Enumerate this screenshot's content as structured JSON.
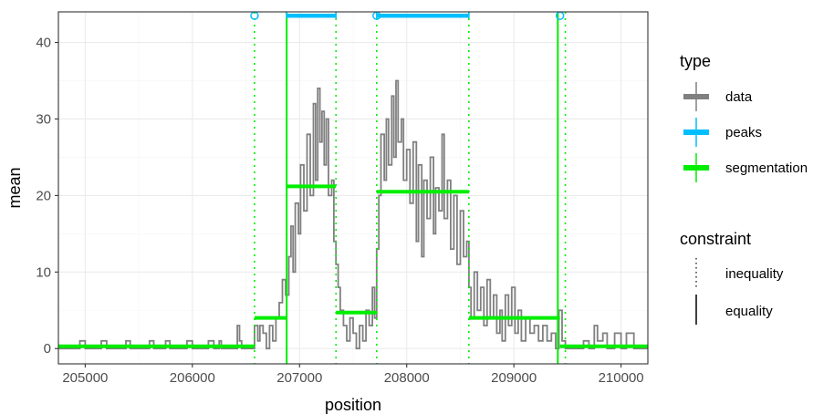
{
  "chart_data": {
    "type": "line",
    "xlabel": "position",
    "ylabel": "mean",
    "xlim": [
      204750,
      210250
    ],
    "ylim": [
      -2,
      44
    ],
    "x_ticks": [
      205000,
      206000,
      207000,
      208000,
      209000,
      210000
    ],
    "x_tick_labels": [
      "205000",
      "206000",
      "207000",
      "208000",
      "209000",
      "210000"
    ],
    "y_ticks": [
      0,
      10,
      20,
      30,
      40
    ],
    "y_tick_labels": [
      "0",
      "10",
      "20",
      "30",
      "40"
    ],
    "grid": true,
    "legend_position": "right",
    "colors": {
      "data": "#808080",
      "peaks": "#00bfff",
      "segmentation": "#00ee00",
      "grid_major": "#ebebeb",
      "grid_minor": "#f5f5f5",
      "panel_border": "#333333"
    },
    "legend": {
      "type_title": "type",
      "type_entries": [
        "data",
        "peaks",
        "segmentation"
      ],
      "constraint_title": "constraint",
      "constraint_entries": [
        "inequality",
        "equality"
      ]
    },
    "data_profile": [
      [
        204750,
        0
      ],
      [
        204950,
        1
      ],
      [
        205000,
        0
      ],
      [
        205150,
        1
      ],
      [
        205200,
        0
      ],
      [
        205380,
        1
      ],
      [
        205420,
        0
      ],
      [
        205600,
        1
      ],
      [
        205640,
        0
      ],
      [
        205750,
        1
      ],
      [
        205790,
        0
      ],
      [
        205950,
        1
      ],
      [
        206000,
        0
      ],
      [
        206150,
        1
      ],
      [
        206200,
        0
      ],
      [
        206250,
        1
      ],
      [
        206270,
        0
      ],
      [
        206420,
        3
      ],
      [
        206440,
        1
      ],
      [
        206460,
        0
      ],
      [
        206580,
        3
      ],
      [
        206610,
        1
      ],
      [
        206630,
        3
      ],
      [
        206660,
        2
      ],
      [
        206690,
        0
      ],
      [
        206720,
        3
      ],
      [
        206750,
        1
      ],
      [
        206780,
        4
      ],
      [
        206810,
        6
      ],
      [
        206840,
        9
      ],
      [
        206870,
        7
      ],
      [
        206900,
        12
      ],
      [
        206920,
        16
      ],
      [
        206940,
        10
      ],
      [
        206960,
        19
      ],
      [
        206990,
        15
      ],
      [
        207010,
        24
      ],
      [
        207040,
        18
      ],
      [
        207070,
        28
      ],
      [
        207100,
        20
      ],
      [
        207130,
        32
      ],
      [
        207150,
        22
      ],
      [
        207170,
        34
      ],
      [
        207190,
        27
      ],
      [
        207210,
        31
      ],
      [
        207230,
        24
      ],
      [
        207250,
        30
      ],
      [
        207270,
        20
      ],
      [
        207300,
        22
      ],
      [
        207320,
        14
      ],
      [
        207340,
        11
      ],
      [
        207360,
        8
      ],
      [
        207380,
        5
      ],
      [
        207410,
        3
      ],
      [
        207440,
        1
      ],
      [
        207470,
        4
      ],
      [
        207500,
        2
      ],
      [
        207530,
        0
      ],
      [
        207560,
        3
      ],
      [
        207590,
        1
      ],
      [
        207620,
        5
      ],
      [
        207650,
        3
      ],
      [
        207680,
        8
      ],
      [
        207700,
        4
      ],
      [
        207720,
        13
      ],
      [
        207740,
        20
      ],
      [
        207760,
        28
      ],
      [
        207790,
        22
      ],
      [
        207810,
        30
      ],
      [
        207830,
        24
      ],
      [
        207860,
        33
      ],
      [
        207880,
        25
      ],
      [
        207900,
        35
      ],
      [
        207920,
        27
      ],
      [
        207950,
        30
      ],
      [
        207970,
        22
      ],
      [
        208000,
        26
      ],
      [
        208030,
        19
      ],
      [
        208060,
        27
      ],
      [
        208090,
        14
      ],
      [
        208110,
        24
      ],
      [
        208140,
        12
      ],
      [
        208160,
        22
      ],
      [
        208190,
        17
      ],
      [
        208220,
        25
      ],
      [
        208250,
        15
      ],
      [
        208270,
        21
      ],
      [
        208300,
        18
      ],
      [
        208330,
        28
      ],
      [
        208350,
        17
      ],
      [
        208380,
        22
      ],
      [
        208410,
        13
      ],
      [
        208440,
        20
      ],
      [
        208470,
        11
      ],
      [
        208500,
        18
      ],
      [
        208530,
        12
      ],
      [
        208560,
        14
      ],
      [
        208580,
        8
      ],
      [
        208600,
        4
      ],
      [
        208630,
        10
      ],
      [
        208660,
        5
      ],
      [
        208690,
        8
      ],
      [
        208720,
        3
      ],
      [
        208750,
        9
      ],
      [
        208780,
        4
      ],
      [
        208810,
        7
      ],
      [
        208840,
        2
      ],
      [
        208870,
        5
      ],
      [
        208890,
        1
      ],
      [
        208920,
        7
      ],
      [
        208950,
        3
      ],
      [
        208980,
        8
      ],
      [
        209010,
        2
      ],
      [
        209040,
        5
      ],
      [
        209070,
        1
      ],
      [
        209110,
        4
      ],
      [
        209150,
        2
      ],
      [
        209190,
        3
      ],
      [
        209230,
        1
      ],
      [
        209270,
        3
      ],
      [
        209310,
        1
      ],
      [
        209350,
        2
      ],
      [
        209390,
        0
      ],
      [
        209420,
        5
      ],
      [
        209450,
        1
      ],
      [
        209480,
        0
      ],
      [
        209650,
        1
      ],
      [
        209700,
        0
      ],
      [
        209750,
        3
      ],
      [
        209780,
        1
      ],
      [
        209830,
        2
      ],
      [
        209870,
        0
      ],
      [
        209940,
        2
      ],
      [
        210000,
        0
      ],
      [
        210050,
        2
      ],
      [
        210120,
        0
      ],
      [
        210250,
        0
      ]
    ],
    "segments": [
      {
        "start": 204750,
        "end": 206580,
        "mean": 0.3
      },
      {
        "start": 206580,
        "end": 206880,
        "mean": 4.0
      },
      {
        "start": 206880,
        "end": 207340,
        "mean": 21.2
      },
      {
        "start": 207340,
        "end": 207720,
        "mean": 4.7
      },
      {
        "start": 207720,
        "end": 208580,
        "mean": 20.5
      },
      {
        "start": 208580,
        "end": 209430,
        "mean": 4.0
      },
      {
        "start": 209430,
        "end": 210250,
        "mean": 0.3
      }
    ],
    "changepoints": [
      {
        "position": 206580,
        "constraint": "inequality"
      },
      {
        "position": 206880,
        "constraint": "equality"
      },
      {
        "position": 207340,
        "constraint": "inequality"
      },
      {
        "position": 207720,
        "constraint": "inequality"
      },
      {
        "position": 208580,
        "constraint": "inequality"
      },
      {
        "position": 209410,
        "constraint": "equality"
      },
      {
        "position": 209480,
        "constraint": "inequality"
      }
    ],
    "peaks": [
      {
        "start": 206880,
        "end": 207340,
        "y": 43.5
      },
      {
        "start": 207720,
        "end": 208580,
        "y": 43.5
      }
    ],
    "peak_markers": [
      206580,
      207720,
      209430
    ]
  }
}
